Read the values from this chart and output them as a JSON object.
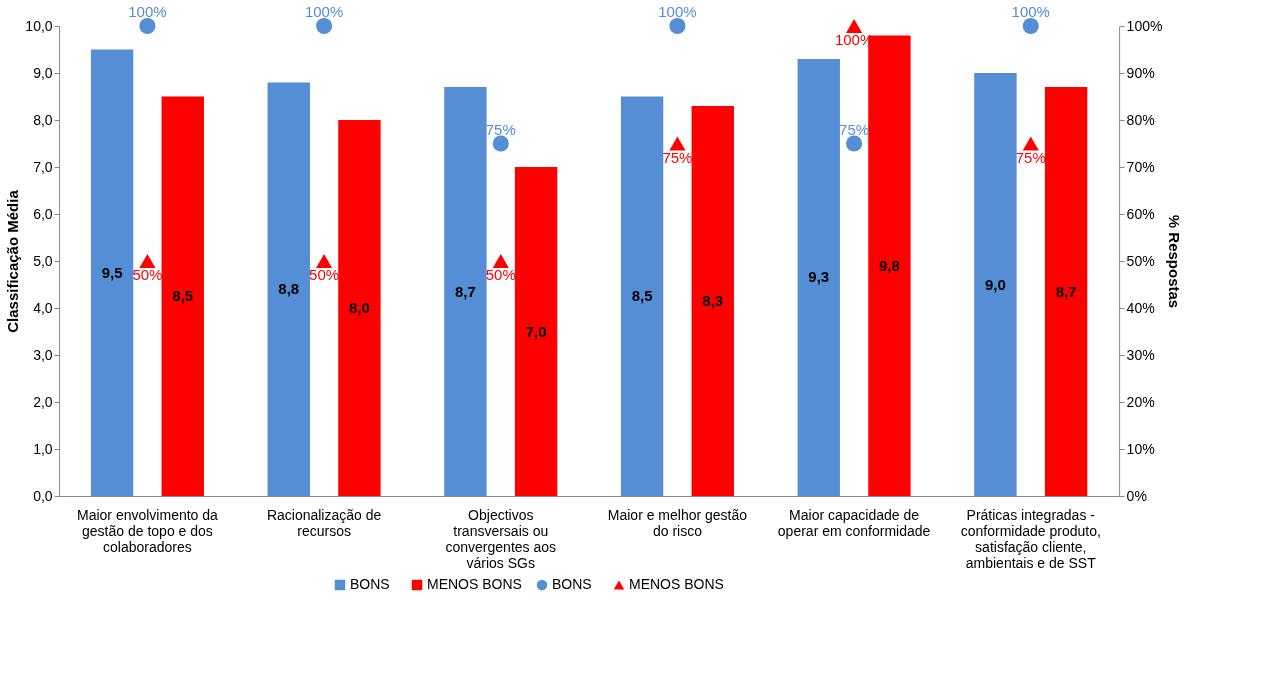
{
  "chart_data": {
    "type": "bar",
    "ylabel": "Classificação Média",
    "y2label": "% Respostas",
    "categories": [
      "Maior envolvimento da gestão de topo e dos colaboradores",
      "Racionalização de recursos",
      "Objectivos transversais ou convergentes aos vários SGs",
      "Maior e melhor gestão do risco",
      "Maior capacidade de operar em conformidade",
      "Práticas integradas - conformidade produto, satisfação cliente, ambientais e de SST"
    ],
    "series": [
      {
        "name": "BONS",
        "color": "#558ed5",
        "values": [
          9.5,
          8.8,
          8.7,
          8.5,
          9.3,
          9.0
        ],
        "value_labels": [
          "9,5",
          "8,8",
          "8,7",
          "8,5",
          "9,3",
          "9,0"
        ]
      },
      {
        "name": "MENOS BONS",
        "color": "#ff0000",
        "values": [
          8.5,
          8.0,
          7.0,
          8.3,
          9.8,
          8.7
        ],
        "value_labels": [
          "8,5",
          "8,0",
          "7,0",
          "8,3",
          "9,8",
          "8,7"
        ]
      },
      {
        "name": "BONS",
        "type": "scatter",
        "axis": "y2",
        "marker": "circle",
        "color": "#558ed5",
        "values": [
          100,
          100,
          75,
          100,
          75,
          100
        ],
        "value_labels": [
          "100%",
          "100%",
          "75%",
          "100%",
          "75%",
          "100%"
        ]
      },
      {
        "name": "MENOS BONS",
        "type": "scatter",
        "axis": "y2",
        "marker": "triangle",
        "color": "#ff0000",
        "values": [
          50,
          50,
          50,
          75,
          100,
          75
        ],
        "value_labels": [
          "50%",
          "50%",
          "50%",
          "75%",
          "100%",
          "75%"
        ]
      }
    ],
    "ylim": [
      0,
      10
    ],
    "yticks": [
      {
        "value": 0,
        "label": "0,0"
      },
      {
        "value": 1,
        "label": "1,0"
      },
      {
        "value": 2,
        "label": "2,0"
      },
      {
        "value": 3,
        "label": "3,0"
      },
      {
        "value": 4,
        "label": "4,0"
      },
      {
        "value": 5,
        "label": "5,0"
      },
      {
        "value": 6,
        "label": "6,0"
      },
      {
        "value": 7,
        "label": "7,0"
      },
      {
        "value": 8,
        "label": "8,0"
      },
      {
        "value": 9,
        "label": "9,0"
      },
      {
        "value": 10,
        "label": "10,0"
      }
    ],
    "y2lim": [
      0,
      100
    ],
    "y2ticks": [
      {
        "value": 0,
        "label": "0%"
      },
      {
        "value": 10,
        "label": "10%"
      },
      {
        "value": 20,
        "label": "20%"
      },
      {
        "value": 30,
        "label": "30%"
      },
      {
        "value": 40,
        "label": "40%"
      },
      {
        "value": 50,
        "label": "50%"
      },
      {
        "value": 60,
        "label": "60%"
      },
      {
        "value": 70,
        "label": "70%"
      },
      {
        "value": 80,
        "label": "80%"
      },
      {
        "value": 90,
        "label": "90%"
      },
      {
        "value": 100,
        "label": "100%"
      }
    ],
    "grid": false,
    "legend": "bottom"
  }
}
